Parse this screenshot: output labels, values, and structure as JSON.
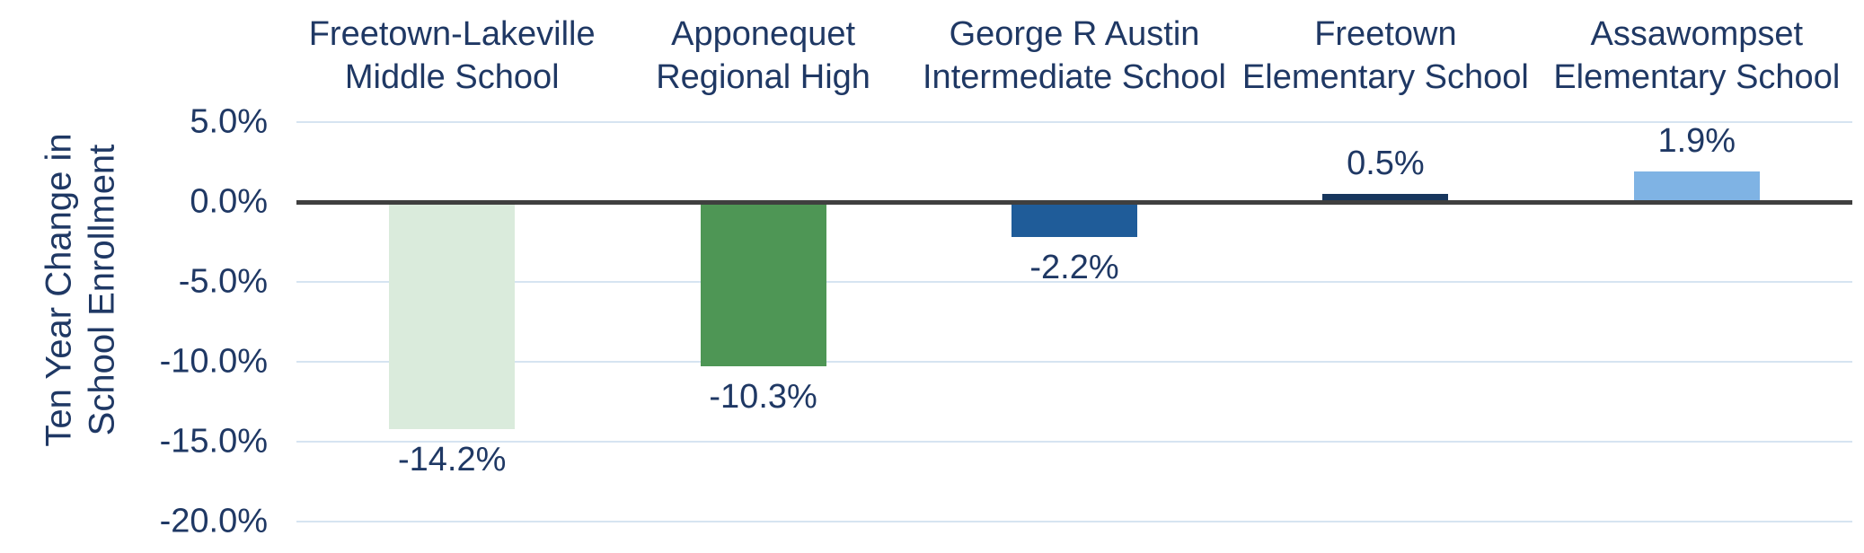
{
  "chart_data": {
    "type": "bar",
    "categories": [
      {
        "line1": "Freetown-Lakeville",
        "line2": "Middle School"
      },
      {
        "line1": "Apponequet",
        "line2": "Regional High"
      },
      {
        "line1": "George R Austin",
        "line2": "Intermediate School"
      },
      {
        "line1": "Freetown",
        "line2": "Elementary School"
      },
      {
        "line1": "Assawompset",
        "line2": "Elementary School"
      }
    ],
    "values": [
      -14.2,
      -10.3,
      -2.2,
      0.5,
      1.9
    ],
    "value_labels": [
      "-14.2%",
      "-10.3%",
      "-2.2%",
      "0.5%",
      "1.9%"
    ],
    "bar_colors": [
      "#DAEBDC",
      "#4E9655",
      "#1F5C99",
      "#17365D",
      "#7FB3E4"
    ],
    "ylabel_lines": [
      "Ten Year Change in",
      "School Enrollment"
    ],
    "y_ticks": [
      "5.0%",
      "0.0%",
      "-5.0%",
      "-10.0%",
      "-15.0%",
      "-20.0%"
    ],
    "y_tick_values": [
      5,
      0,
      -5,
      -10,
      -15,
      -20
    ],
    "ylim": [
      -20,
      5
    ],
    "grid": true,
    "legend": false,
    "colors": {
      "text": "#1F3864",
      "gridline": "#D6E4F1",
      "zero_line": "#3F3F3F",
      "background": "#FFFFFF"
    }
  }
}
